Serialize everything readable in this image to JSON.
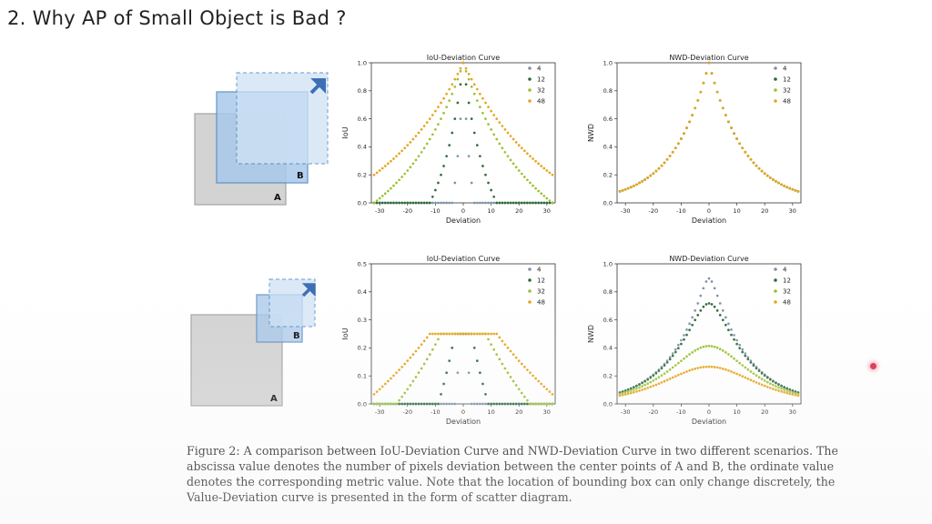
{
  "slide": {
    "title": "2. Why AP of Small Object is Bad ?"
  },
  "diagrams": [
    {
      "box_a_label": "A",
      "box_b_label": "B"
    },
    {
      "box_a_label": "A",
      "box_b_label": "B"
    }
  ],
  "colors": {
    "s4": "#7f93a6",
    "s12": "#2e6b3a",
    "s32": "#9bc232",
    "s48": "#e8a41d",
    "boxA": "#cfcfcf",
    "boxB": "#a9c9ea"
  },
  "chart_data": [
    {
      "id": "iou1",
      "type": "scatter",
      "title": "IoU-Deviation Curve",
      "xlabel": "Deviation",
      "ylabel": "IoU",
      "xlim": [
        -33,
        33
      ],
      "ylim": [
        0,
        1.0
      ],
      "xticks": [
        -30,
        -20,
        -10,
        0,
        10,
        20,
        30
      ],
      "yticks": [
        0.0,
        0.2,
        0.4,
        0.6,
        0.8,
        1.0
      ],
      "legend": [
        "4",
        "12",
        "32",
        "48"
      ],
      "legend_position": "top-right",
      "series": [
        {
          "name": "4",
          "formula": "iou_shift",
          "size": 4,
          "scale": 1
        },
        {
          "name": "12",
          "formula": "iou_shift",
          "size": 12,
          "scale": 1
        },
        {
          "name": "32",
          "formula": "iou_shift",
          "size": 32,
          "scale": 1
        },
        {
          "name": "48",
          "formula": "iou_shift",
          "size": 48,
          "scale": 1
        }
      ]
    },
    {
      "id": "nwd1",
      "type": "scatter",
      "title": "NWD-Deviation Curve",
      "xlabel": "Deviation",
      "ylabel": "NWD",
      "xlim": [
        -33,
        33
      ],
      "ylim": [
        0,
        1.0
      ],
      "xticks": [
        -30,
        -20,
        -10,
        0,
        10,
        20,
        30
      ],
      "yticks": [
        0.0,
        0.2,
        0.4,
        0.6,
        0.8,
        1.0
      ],
      "legend": [
        "4",
        "12",
        "32",
        "48"
      ],
      "legend_position": "top-right",
      "series": [
        {
          "name": "4",
          "formula": "nwd_shift",
          "size": 4,
          "scale": 1
        },
        {
          "name": "12",
          "formula": "nwd_shift",
          "size": 12,
          "scale": 1
        },
        {
          "name": "32",
          "formula": "nwd_shift",
          "size": 32,
          "scale": 1
        },
        {
          "name": "48",
          "formula": "nwd_shift",
          "size": 48,
          "scale": 1
        }
      ]
    },
    {
      "id": "iou2",
      "type": "scatter",
      "title": "IoU-Deviation Curve",
      "xlabel": "Deviation",
      "ylabel": "IoU",
      "xlim": [
        -33,
        33
      ],
      "ylim": [
        0,
        0.5
      ],
      "xticks": [
        -30,
        -20,
        -10,
        0,
        10,
        20,
        30
      ],
      "yticks": [
        0.0,
        0.1,
        0.2,
        0.3,
        0.4,
        0.5
      ],
      "legend": [
        "4",
        "12",
        "32",
        "48"
      ],
      "legend_position": "top-right",
      "series": [
        {
          "name": "4",
          "formula": "iou_half",
          "size": 4,
          "scale": 0.5
        },
        {
          "name": "12",
          "formula": "iou_half",
          "size": 12,
          "scale": 0.5
        },
        {
          "name": "32",
          "formula": "iou_half",
          "size": 32,
          "scale": 0.5
        },
        {
          "name": "48",
          "formula": "iou_half",
          "size": 48,
          "scale": 0.5
        }
      ]
    },
    {
      "id": "nwd2",
      "type": "scatter",
      "title": "NWD-Deviation Curve",
      "xlabel": "Deviation",
      "ylabel": "NWD",
      "xlim": [
        -33,
        33
      ],
      "ylim": [
        0,
        1.0
      ],
      "xticks": [
        -30,
        -20,
        -10,
        0,
        10,
        20,
        30
      ],
      "yticks": [
        0.0,
        0.2,
        0.4,
        0.6,
        0.8,
        1.0
      ],
      "legend": [
        "4",
        "12",
        "32",
        "48"
      ],
      "legend_position": "top-right",
      "series": [
        {
          "name": "4",
          "formula": "nwd_half",
          "size": 4,
          "scale": 0.5
        },
        {
          "name": "12",
          "formula": "nwd_half",
          "size": 12,
          "scale": 0.5
        },
        {
          "name": "32",
          "formula": "nwd_half",
          "size": 32,
          "scale": 0.5
        },
        {
          "name": "48",
          "formula": "nwd_half",
          "size": 48,
          "scale": 0.5
        }
      ]
    }
  ],
  "caption": {
    "text": "Figure 2: A comparison between IoU-Deviation Curve and NWD-Deviation Curve in two different scenarios. The abscissa value denotes the number of pixels deviation between the center points of A and B, the ordinate value denotes the corresponding metric value. Note that the location of bounding box can only change discretely, the Value-Deviation curve is presented in the form of scatter diagram."
  }
}
